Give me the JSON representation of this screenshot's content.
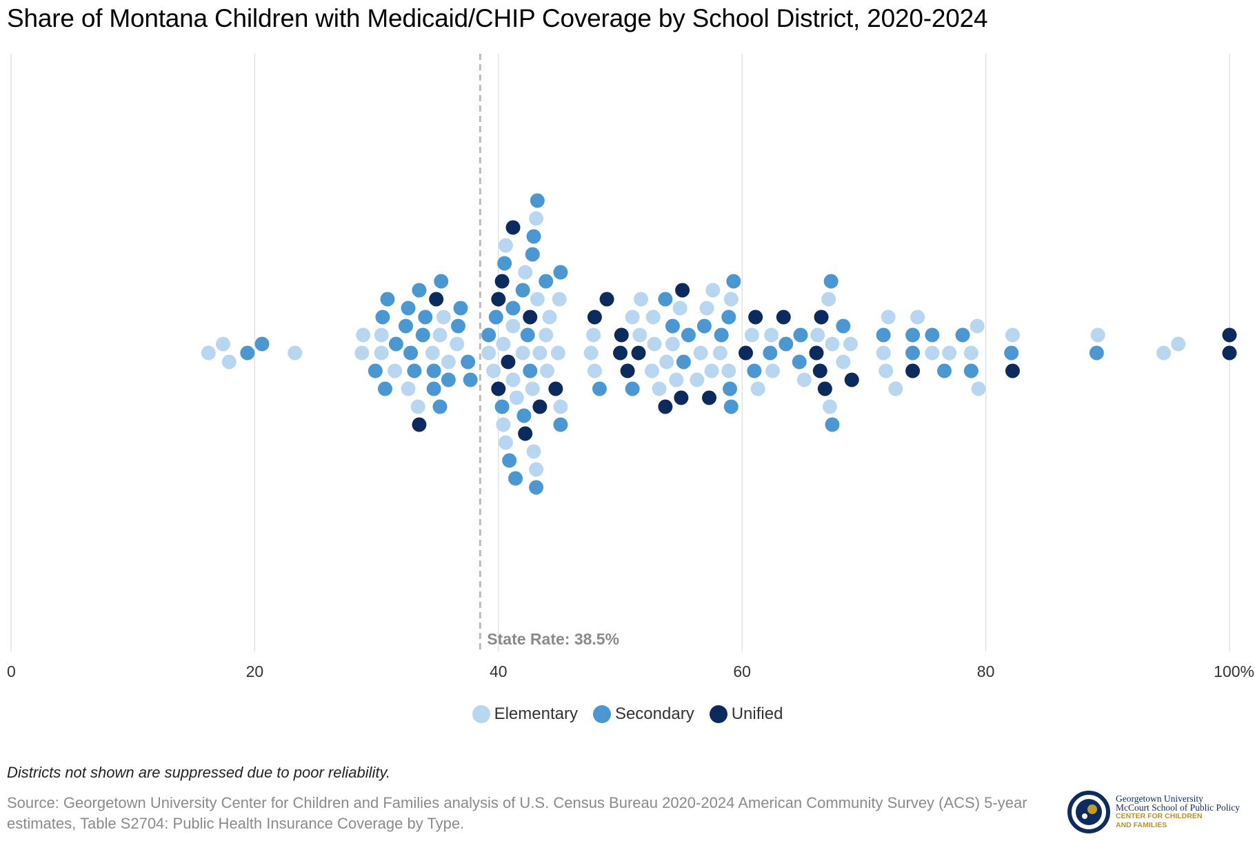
{
  "colors": {
    "elementary": "#b9d6f0",
    "secondary": "#4a97d2",
    "unified": "#0b2a5e",
    "grid": "#dddddd",
    "state_line": "#bbbbbb",
    "state_label": "#8a8a8a",
    "tick_label": "#333333"
  },
  "chart_data": {
    "type": "scatter",
    "subtype": "beeswarm",
    "title": "Share of Montana Children with Medicaid/CHIP Coverage by School District, 2020-2024",
    "xlabel": "",
    "ylabel": "",
    "xlim": [
      0,
      100
    ],
    "x_ticks": [
      0,
      20,
      40,
      60,
      80,
      100
    ],
    "x_tick_labels": [
      "0",
      "20",
      "40",
      "60",
      "80",
      "100%"
    ],
    "grid": true,
    "legend_position": "bottom-center",
    "reference_line": {
      "value": 38.5,
      "label": "State Rate: 38.5%"
    },
    "series": [
      {
        "name": "Elementary",
        "values": [
          16.2,
          17.4,
          17.9,
          23.3,
          28.8,
          28.9,
          30.4,
          30.4,
          31.5,
          32.6,
          33.4,
          34.6,
          35.2,
          35.5,
          35.9,
          36.6,
          39.2,
          39.6,
          40.4,
          40.4,
          40.6,
          40.6,
          41.2,
          41.2,
          41.5,
          42.0,
          42.2,
          42.8,
          42.9,
          43.1,
          43.1,
          43.2,
          43.4,
          43.9,
          44.0,
          44.2,
          44.9,
          45.0,
          45.1,
          47.6,
          47.8,
          47.9,
          51.0,
          51.6,
          51.7,
          52.6,
          52.7,
          52.8,
          53.2,
          53.8,
          54.3,
          54.6,
          54.9,
          56.3,
          56.6,
          57.1,
          57.5,
          57.6,
          58.2,
          58.9,
          59.1,
          60.8,
          61.3,
          62.4,
          62.5,
          65.1,
          66.2,
          67.1,
          67.2,
          67.4,
          68.3,
          68.9,
          71.6,
          71.8,
          72.0,
          72.6,
          74.4,
          75.6,
          77.0,
          78.8,
          79.3,
          79.4,
          82.2,
          89.2,
          94.6,
          95.8
        ],
        "groups": [
          0,
          0,
          0,
          0,
          0,
          1,
          0,
          2,
          3,
          4,
          5,
          6,
          7,
          8,
          9,
          10,
          11,
          12,
          13,
          14,
          15,
          16,
          17,
          18,
          19,
          20,
          21,
          22,
          23,
          24,
          25,
          26,
          27,
          28,
          29,
          30,
          31,
          32,
          33,
          34,
          35,
          36,
          37,
          38,
          39,
          40,
          41,
          42,
          43,
          44,
          45,
          46,
          47,
          48,
          49,
          50,
          51,
          52,
          53,
          54,
          55,
          56,
          57,
          58,
          59,
          60,
          61,
          62,
          63,
          64,
          65,
          66,
          67,
          68,
          69,
          70,
          71,
          72,
          73,
          74,
          75,
          76,
          77,
          78,
          79,
          80,
          81,
          82,
          83,
          84
        ]
      },
      {
        "name": "Secondary",
        "values": [
          19.4,
          20.6,
          29.9,
          30.5,
          30.7,
          30.9,
          31.6,
          32.4,
          32.6,
          32.8,
          33.1,
          33.5,
          33.8,
          34.0,
          34.7,
          34.7,
          35.2,
          35.3,
          35.9,
          36.7,
          36.9,
          37.5,
          37.7,
          39.2,
          39.8,
          40.3,
          40.5,
          40.9,
          41.2,
          41.4,
          42.0,
          42.1,
          42.4,
          42.6,
          42.8,
          42.9,
          43.1,
          43.2,
          43.9,
          45.1,
          45.1,
          48.3,
          51.0,
          53.7,
          54.3,
          55.2,
          55.6,
          56.9,
          58.3,
          58.9,
          59.0,
          59.1,
          59.3,
          61.0,
          62.3,
          63.6,
          64.7,
          64.8,
          67.3,
          67.4,
          68.3,
          71.6,
          74.0,
          74.0,
          75.6,
          76.6,
          78.1,
          78.8,
          82.1,
          89.1
        ]
      },
      {
        "name": "Unified",
        "values": [
          33.5,
          34.9,
          40.0,
          40.0,
          40.3,
          40.8,
          41.2,
          42.2,
          42.6,
          43.4,
          44.7,
          47.9,
          48.9,
          50.0,
          50.1,
          50.6,
          51.5,
          53.7,
          55.0,
          55.1,
          57.3,
          60.3,
          61.1,
          63.4,
          66.1,
          66.4,
          66.5,
          66.8,
          69.0,
          74.0,
          82.2,
          100.0,
          100.0
        ]
      }
    ]
  },
  "legend": {
    "elementary": "Elementary",
    "secondary": "Secondary",
    "unified": "Unified"
  },
  "note": "Districts not shown are suppressed due to poor reliability.",
  "source": "Source: Georgetown University Center for Children and Families analysis of U.S. Census Bureau 2020-2024 American Community Survey (ACS) 5-year estimates, Table S2704: Public Health Insurance Coverage by Type.",
  "logo": {
    "line1": "Georgetown University",
    "line2": "McCourt School of Public Policy",
    "line3": "CENTER FOR CHILDREN",
    "line4": "AND FAMILIES"
  }
}
